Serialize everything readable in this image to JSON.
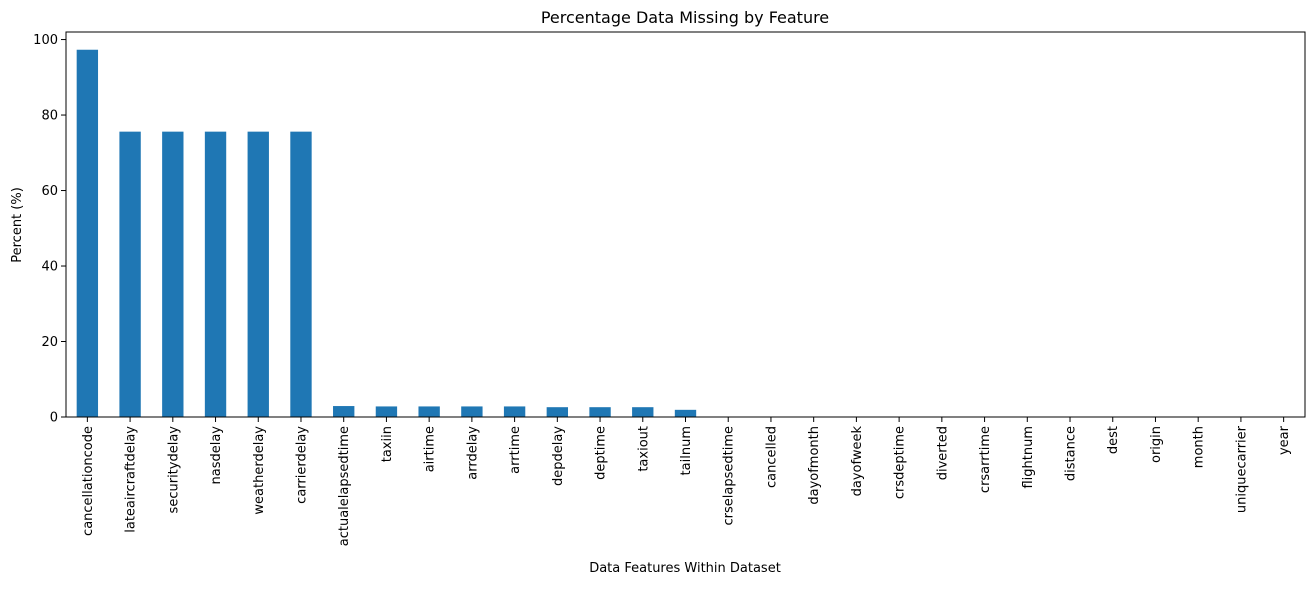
{
  "chart_data": {
    "type": "bar",
    "title": "Percentage Data Missing by Feature",
    "xlabel": "Data Features Within Dataset",
    "ylabel": "Percent (%)",
    "ylim": [
      0,
      102
    ],
    "yticks": [
      0,
      20,
      40,
      60,
      80,
      100
    ],
    "ytick_labels": [
      "0",
      "20",
      "40",
      "60",
      "80",
      "100"
    ],
    "grid": false,
    "legend": false,
    "bar_color": "#1f77b4",
    "categories": [
      "cancellationcode",
      "lateaircraftdelay",
      "securitydelay",
      "nasdelay",
      "weatherdelay",
      "carrierdelay",
      "actualelapsedtime",
      "taxiin",
      "airtime",
      "arrdelay",
      "arrtime",
      "depdelay",
      "deptime",
      "taxiout",
      "tailnum",
      "crselapsedtime",
      "cancelled",
      "dayofmonth",
      "dayofweek",
      "crsdeptime",
      "diverted",
      "crsarrtime",
      "flightnum",
      "distance",
      "dest",
      "origin",
      "month",
      "uniquecarrier",
      "year"
    ],
    "values": [
      97.3,
      75.6,
      75.6,
      75.6,
      75.6,
      75.6,
      2.9,
      2.8,
      2.8,
      2.8,
      2.8,
      2.6,
      2.6,
      2.6,
      1.9,
      0.01,
      0,
      0,
      0,
      0,
      0,
      0,
      0,
      0,
      0,
      0,
      0,
      0,
      0
    ]
  }
}
